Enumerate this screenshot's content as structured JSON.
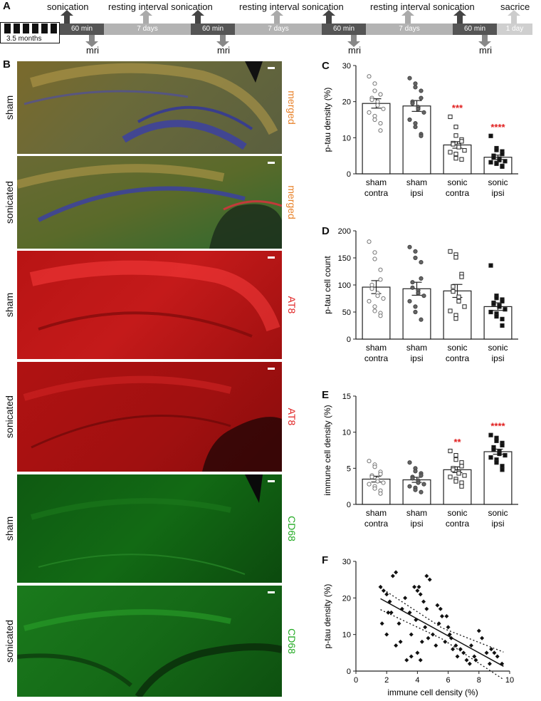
{
  "panels": {
    "A": "A",
    "B": "B",
    "C": "C",
    "D": "D",
    "E": "E",
    "F": "F"
  },
  "timeline": {
    "start_label": "3.5 months",
    "events_top": [
      "sonication",
      "resting interval sonication",
      "resting interval sonication",
      "resting interval sonication",
      "sacrice"
    ],
    "events_bottom": [
      "mri",
      "mri",
      "mri",
      "mri"
    ],
    "segments": [
      "60 min",
      "7 days",
      "60 min",
      "7 days",
      "60 min",
      "7 days",
      "60 min",
      "1 day"
    ],
    "colors": {
      "sonication": "#555555",
      "rest": "#b3b3b3",
      "end": "#cfcfcf"
    }
  },
  "micrographs": [
    {
      "row": "sham",
      "stain": "merged",
      "stain_color": "#e8822a"
    },
    {
      "row": "sonicated",
      "stain": "merged",
      "stain_color": "#e8822a"
    },
    {
      "row": "sham",
      "stain": "AT8",
      "stain_color": "#e02020"
    },
    {
      "row": "sonicated",
      "stain": "AT8",
      "stain_color": "#e02020"
    },
    {
      "row": "sham",
      "stain": "CD68",
      "stain_color": "#22aa22"
    },
    {
      "row": "sonicated",
      "stain": "CD68",
      "stain_color": "#22aa22"
    }
  ],
  "chart_data": [
    {
      "panel": "C",
      "type": "bar",
      "ylabel": "p-tau density (%)",
      "ylim": [
        0,
        30
      ],
      "yticks": [
        0,
        10,
        20,
        30
      ],
      "categories": [
        [
          "sham",
          "contra"
        ],
        [
          "sham",
          "ipsi"
        ],
        [
          "sonic",
          "contra"
        ],
        [
          "sonic",
          "ipsi"
        ]
      ],
      "values": [
        19.5,
        18.8,
        8.0,
        4.6
      ],
      "sem": [
        1.3,
        1.5,
        0.9,
        0.6
      ],
      "significance": [
        "",
        "",
        "***",
        "****"
      ],
      "points": [
        [
          27,
          25,
          23,
          22,
          22,
          21,
          20.5,
          20,
          19,
          18,
          17,
          16,
          15,
          14,
          12
        ],
        [
          26.5,
          25,
          24,
          23,
          21,
          20,
          19.5,
          18.5,
          18,
          17,
          15,
          14,
          13,
          11,
          10.5
        ],
        [
          15.8,
          13,
          10.6,
          9.5,
          9,
          8.5,
          8.2,
          7.8,
          7.4,
          6.5,
          6,
          5.5,
          4.3,
          4
        ],
        [
          10.5,
          7.1,
          6.6,
          6.2,
          5.5,
          5,
          4.5,
          4.2,
          3.8,
          3.5,
          3.2,
          3,
          2.8,
          2.2,
          2
        ]
      ],
      "markers": [
        "open-circle",
        "filled-circle",
        "open-square",
        "filled-square"
      ]
    },
    {
      "panel": "D",
      "type": "bar",
      "ylabel": "p-tau cell count",
      "ylim": [
        0,
        200
      ],
      "yticks": [
        0,
        50,
        100,
        150,
        200
      ],
      "categories": [
        [
          "sham",
          "contra"
        ],
        [
          "sham",
          "ipsi"
        ],
        [
          "sonic",
          "contra"
        ],
        [
          "sonic",
          "ipsi"
        ]
      ],
      "values": [
        96,
        93,
        89,
        60
      ],
      "sem": [
        12,
        12,
        12,
        7
      ],
      "significance": [
        "",
        "",
        "",
        ""
      ],
      "points": [
        [
          180,
          160,
          148,
          128,
          110,
          100,
          93,
          85,
          80,
          75,
          70,
          60,
          52,
          48,
          43
        ],
        [
          170,
          162,
          150,
          142,
          112,
          105,
          95,
          90,
          85,
          80,
          70,
          60,
          50,
          36
        ],
        [
          162,
          156,
          151,
          120,
          115,
          97,
          88,
          78,
          70,
          60,
          52,
          44,
          38
        ],
        [
          136,
          80,
          76,
          73,
          70,
          67,
          65,
          62,
          60,
          55,
          50,
          47,
          42,
          37,
          25
        ]
      ],
      "markers": [
        "open-circle",
        "filled-circle",
        "open-square",
        "filled-square"
      ]
    },
    {
      "panel": "E",
      "type": "bar",
      "ylabel": "immune cell density (%)",
      "ylim": [
        0,
        15
      ],
      "yticks": [
        0,
        5,
        10,
        15
      ],
      "categories": [
        [
          "sham",
          "contra"
        ],
        [
          "sham",
          "ipsi"
        ],
        [
          "sonic",
          "contra"
        ],
        [
          "sonic",
          "ipsi"
        ]
      ],
      "values": [
        3.5,
        3.4,
        4.8,
        7.3
      ],
      "sem": [
        0.4,
        0.35,
        0.4,
        0.35
      ],
      "significance": [
        "",
        "",
        "**",
        "****"
      ],
      "points": [
        [
          6.0,
          5.5,
          5.2,
          4.5,
          4.2,
          4.0,
          3.8,
          3.5,
          3.2,
          3.0,
          2.8,
          2.5,
          2.2,
          1.9,
          1.5
        ],
        [
          5.8,
          5.0,
          4.6,
          4.3,
          4.0,
          3.8,
          3.6,
          3.3,
          3.0,
          2.8,
          2.5,
          2.3,
          2.0,
          1.7
        ],
        [
          7.4,
          6.8,
          6.2,
          5.8,
          5.3,
          5.0,
          4.8,
          4.5,
          4.3,
          4.0,
          3.8,
          3.5,
          3.2,
          3.0,
          2.5
        ],
        [
          9.6,
          9.2,
          8.8,
          8.5,
          8.2,
          7.9,
          7.6,
          7.3,
          7.0,
          6.8,
          6.5,
          6.2,
          5.8,
          5.3,
          4.8
        ]
      ],
      "markers": [
        "open-circle",
        "filled-circle",
        "open-square",
        "filled-square"
      ]
    },
    {
      "panel": "F",
      "type": "scatter",
      "xlabel": "immune cell density (%)",
      "ylabel": "p-tau density (%)",
      "xlim": [
        0,
        10
      ],
      "ylim": [
        0,
        30
      ],
      "xticks": [
        0,
        2,
        4,
        6,
        8,
        10
      ],
      "yticks": [
        0,
        10,
        20,
        30
      ],
      "points": [
        [
          1.6,
          23
        ],
        [
          1.8,
          22
        ],
        [
          2.0,
          21
        ],
        [
          2.2,
          19
        ],
        [
          2.4,
          26
        ],
        [
          2.6,
          27
        ],
        [
          2.3,
          16
        ],
        [
          2.8,
          13
        ],
        [
          2.9,
          8
        ],
        [
          1.7,
          13
        ],
        [
          2.0,
          10
        ],
        [
          2.1,
          16
        ],
        [
          3.0,
          17
        ],
        [
          3.2,
          20
        ],
        [
          3.5,
          16
        ],
        [
          3.8,
          23
        ],
        [
          4.0,
          22
        ],
        [
          4.2,
          21
        ],
        [
          4.1,
          23
        ],
        [
          4.6,
          26
        ],
        [
          4.8,
          25
        ],
        [
          4.4,
          19
        ],
        [
          4.6,
          17
        ],
        [
          3.9,
          14
        ],
        [
          3.6,
          10
        ],
        [
          3.6,
          4
        ],
        [
          4.0,
          5
        ],
        [
          4.2,
          3
        ],
        [
          4.5,
          12
        ],
        [
          4.7,
          9
        ],
        [
          5.0,
          10
        ],
        [
          5.2,
          7
        ],
        [
          5.3,
          18
        ],
        [
          5.5,
          17
        ],
        [
          5.6,
          15
        ],
        [
          5.9,
          15
        ],
        [
          6.0,
          12
        ],
        [
          6.2,
          9
        ],
        [
          6.3,
          6
        ],
        [
          6.5,
          7
        ],
        [
          6.6,
          4
        ],
        [
          6.8,
          6
        ],
        [
          7.0,
          5
        ],
        [
          7.2,
          3
        ],
        [
          7.4,
          2
        ],
        [
          7.7,
          4
        ],
        [
          7.8,
          3
        ],
        [
          8.0,
          11
        ],
        [
          8.2,
          9
        ],
        [
          8.5,
          5
        ],
        [
          8.8,
          6
        ],
        [
          9.0,
          5
        ],
        [
          9.2,
          4
        ],
        [
          9.5,
          2
        ],
        [
          5.4,
          13
        ],
        [
          6.1,
          10
        ],
        [
          3.3,
          3
        ],
        [
          2.6,
          7
        ],
        [
          4.3,
          8
        ],
        [
          5.8,
          8
        ],
        [
          7.5,
          7
        ],
        [
          8.7,
          2
        ]
      ],
      "fit": {
        "x": [
          1.6,
          9.6
        ],
        "y": [
          19.8,
          1.3
        ]
      },
      "ci_upper": {
        "x": [
          1.6,
          5.6,
          9.6
        ],
        "y": [
          22.8,
          11.8,
          5.2
        ]
      },
      "ci_lower": {
        "x": [
          1.6,
          5.6,
          9.6
        ],
        "y": [
          16.8,
          8.8,
          -2.3
        ]
      }
    }
  ]
}
